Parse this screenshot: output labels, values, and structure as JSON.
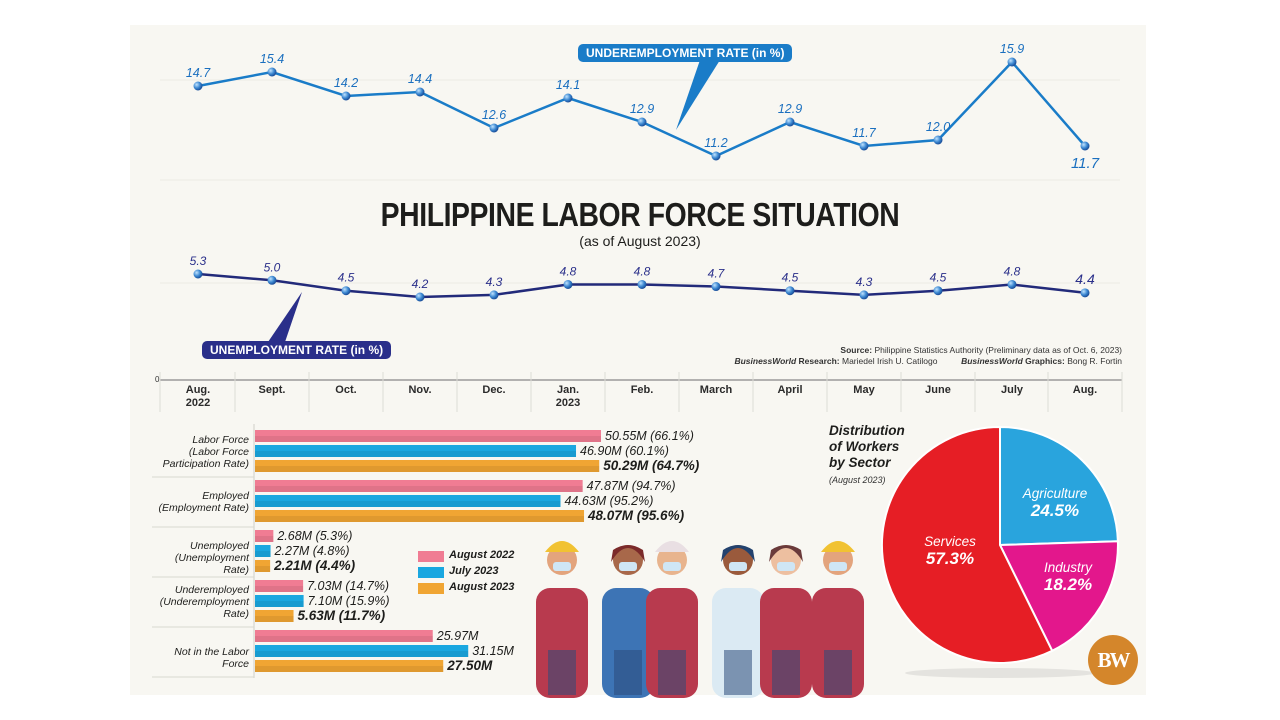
{
  "header": {
    "title": "PHILIPPINE LABOR FORCE SITUATION",
    "subtitle": "(as of August 2023)"
  },
  "labels": {
    "underemployment_tag": "UNDEREMPLOYMENT RATE (in %)",
    "unemployment_tag": "UNEMPLOYMENT RATE (in %)",
    "axis_zero": "0"
  },
  "credits": {
    "source_label": "Source:",
    "source_text": " Philippine Statistics Authority (Preliminary data as of Oct. 6, 2023)",
    "research_brand": "BusinessWorld",
    "research_label": " Research:",
    "research_name": " Mariedel Irish U. Catilogo",
    "graphics_brand": "BusinessWorld",
    "graphics_label": " Graphics:",
    "graphics_name": " Bong R. Fortin"
  },
  "months": [
    {
      "line1": "Aug.",
      "line2": "2022"
    },
    {
      "line1": "Sept.",
      "line2": ""
    },
    {
      "line1": "Oct.",
      "line2": ""
    },
    {
      "line1": "Nov.",
      "line2": ""
    },
    {
      "line1": "Dec.",
      "line2": ""
    },
    {
      "line1": "Jan.",
      "line2": "2023"
    },
    {
      "line1": "Feb.",
      "line2": ""
    },
    {
      "line1": "March",
      "line2": ""
    },
    {
      "line1": "April",
      "line2": ""
    },
    {
      "line1": "May",
      "line2": ""
    },
    {
      "line1": "June",
      "line2": ""
    },
    {
      "line1": "July",
      "line2": ""
    },
    {
      "line1": "Aug.",
      "line2": ""
    }
  ],
  "bar_categories": [
    {
      "label": "Labor Force\n(Labor Force\nParticipation Rate)"
    },
    {
      "label": "Employed\n(Employment Rate)"
    },
    {
      "label": "Unemployed\n(Unemployment Rate)"
    },
    {
      "label": "Underemployed\n(Underemployment\nRate)"
    },
    {
      "label": "Not in the Labor Force"
    }
  ],
  "legend": [
    {
      "label": "August 2022",
      "color": "#f07c93"
    },
    {
      "label": "July 2023",
      "color": "#1aa7e0"
    },
    {
      "label": "August 2023",
      "color": "#f0a533"
    }
  ],
  "pie": {
    "title_line1": "Distribution",
    "title_line2": "of Workers",
    "title_line3": "by Sector",
    "subtitle": "(August 2023)",
    "slices": [
      {
        "name": "Agriculture",
        "value": "24.5%",
        "color": "#29a4dd"
      },
      {
        "name": "Industry",
        "value": "18.2%",
        "color": "#e3178c"
      },
      {
        "name": "Services",
        "value": "57.3%",
        "color": "#e61e25"
      }
    ]
  },
  "logo": {
    "text": "BW"
  },
  "colors": {
    "underemployment_line": "#1a7cc8",
    "unemployment_line": "#222a7a",
    "underemployment_tag_bg": "#1a7cc8",
    "unemployment_tag_bg": "#2a2f8a",
    "panel_bg": "#f8f7f2"
  },
  "chart_data": [
    {
      "type": "line",
      "title": "Underemployment Rate (in %)",
      "x": [
        "Aug. 2022",
        "Sept.",
        "Oct.",
        "Nov.",
        "Dec.",
        "Jan. 2023",
        "Feb.",
        "March",
        "April",
        "May",
        "June",
        "July",
        "Aug."
      ],
      "values": [
        14.7,
        15.4,
        14.2,
        14.4,
        12.6,
        14.1,
        12.9,
        11.2,
        12.9,
        11.7,
        12.0,
        15.9,
        11.7
      ],
      "value_labels": [
        "14.7",
        "15.4",
        "14.2",
        "14.4",
        "12.6",
        "14.1",
        "12.9",
        "11.2",
        "12.9",
        "11.7",
        "12.0",
        "15.9",
        "11.7"
      ],
      "ylabel": "%"
    },
    {
      "type": "line",
      "title": "Unemployment Rate (in %)",
      "x": [
        "Aug. 2022",
        "Sept.",
        "Oct.",
        "Nov.",
        "Dec.",
        "Jan. 2023",
        "Feb.",
        "March",
        "April",
        "May",
        "June",
        "July",
        "Aug."
      ],
      "values": [
        5.3,
        5.0,
        4.5,
        4.2,
        4.3,
        4.8,
        4.8,
        4.7,
        4.5,
        4.3,
        4.5,
        4.8,
        4.4
      ],
      "value_labels": [
        "5.3",
        "5.0",
        "4.5",
        "4.2",
        "4.3",
        "4.8",
        "4.8",
        "4.7",
        "4.5",
        "4.3",
        "4.5",
        "4.8",
        "4.4"
      ],
      "ylabel": "%"
    },
    {
      "type": "bar",
      "orientation": "horizontal",
      "title": "Labor force indicators",
      "categories": [
        "Labor Force (Labor Force Participation Rate)",
        "Employed (Employment Rate)",
        "Unemployed (Unemployment Rate)",
        "Underemployed (Underemployment Rate)",
        "Not in the Labor Force"
      ],
      "series": [
        {
          "name": "August 2022",
          "values": [
            50.55,
            47.87,
            2.68,
            7.03,
            25.97
          ],
          "labels": [
            "50.55M (66.1%)",
            "47.87M (94.7%)",
            "2.68M (5.3%)",
            "7.03M (14.7%)",
            "25.97M"
          ]
        },
        {
          "name": "July 2023",
          "values": [
            46.9,
            44.63,
            2.27,
            7.1,
            31.15
          ],
          "labels": [
            "46.90M (60.1%)",
            "44.63M (95.2%)",
            "2.27M (4.8%)",
            "7.10M (15.9%)",
            "31.15M"
          ]
        },
        {
          "name": "August 2023",
          "values": [
            50.29,
            48.07,
            2.21,
            5.63,
            27.5
          ],
          "labels": [
            "50.29M (64.7%)",
            "48.07M (95.6%)",
            "2.21M (4.4%)",
            "5.63M (11.7%)",
            "27.50M"
          ]
        }
      ],
      "unit": "million persons",
      "legend_position": "inside-right"
    },
    {
      "type": "pie",
      "title": "Distribution of Workers by Sector (August 2023)",
      "categories": [
        "Agriculture",
        "Industry",
        "Services"
      ],
      "values": [
        24.5,
        18.2,
        57.3
      ]
    }
  ]
}
